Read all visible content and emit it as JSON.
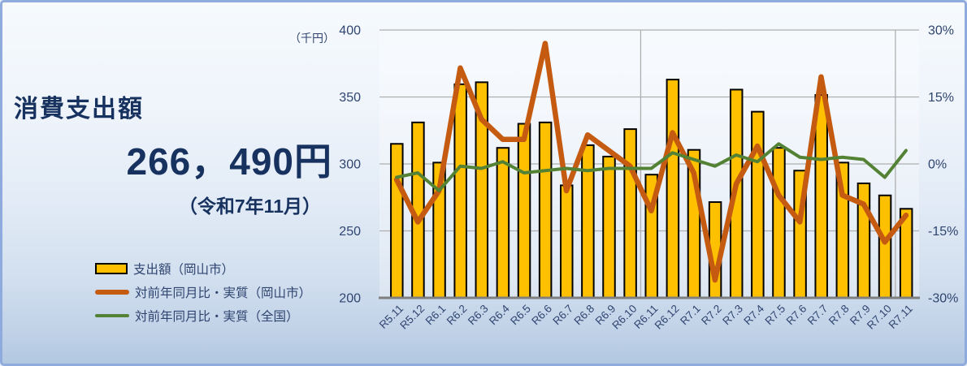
{
  "panel": {
    "border_color": "#8FAADC",
    "background_top": "#F6FAFD",
    "background_bottom": "#B2C8E1"
  },
  "headline": {
    "title": "消費支出額",
    "amount": "266，490円",
    "period": "（令和7年11月）",
    "text_color": "#17325F"
  },
  "legend": {
    "items": [
      {
        "label": "支出額（岡山市）",
        "type": "bar",
        "color": "#FFC000"
      },
      {
        "label": "対前年同月比・実質（岡山市）",
        "type": "line",
        "color": "#C55A11"
      },
      {
        "label": "対前年同月比・実質（全国）",
        "type": "line",
        "color": "#548235"
      }
    ]
  },
  "chart_data": {
    "type": "combo",
    "categories": [
      "R5.11",
      "R5.12",
      "R6.1",
      "R6.2",
      "R6.3",
      "R6.4",
      "R6.5",
      "R6.6",
      "R6.7",
      "R6.8",
      "R6.9",
      "R6.10",
      "R6.11",
      "R6.12",
      "R7.1",
      "R7.2",
      "R7.3",
      "R7.4",
      "R7.5",
      "R7.6",
      "R7.7",
      "R7.8",
      "R7.9",
      "R7.10",
      "R7.11"
    ],
    "series": [
      {
        "name": "支出額（岡山市）",
        "type": "bar",
        "axis": "left",
        "unit": "千円",
        "color": "#FFC000",
        "values": [
          315,
          331,
          301,
          359.5,
          361,
          312,
          330,
          331,
          284,
          314,
          305.5,
          326,
          292,
          363,
          310.5,
          271.5,
          355.5,
          339,
          312,
          295,
          351.5,
          301,
          285.5,
          276.5,
          266.49
        ]
      },
      {
        "name": "対前年同月比・実質（岡山市）",
        "type": "line",
        "axis": "right",
        "unit": "%",
        "color": "#C55A11",
        "values": [
          -3.5,
          -13,
          -6,
          21.5,
          10,
          5.5,
          5.5,
          27,
          -6,
          6.5,
          3,
          -0.5,
          -10.5,
          7,
          -2,
          -26,
          -4.5,
          4,
          -7,
          -13,
          19.5,
          -7,
          -9,
          -17.5,
          -11.5
        ]
      },
      {
        "name": "対前年同月比・実質（全国）",
        "type": "line",
        "axis": "right",
        "unit": "%",
        "color": "#548235",
        "values": [
          -3,
          -2,
          -6,
          -0.5,
          -1,
          0.5,
          -2,
          -1.5,
          -1,
          -1.5,
          -1,
          -1,
          -1,
          2.5,
          1,
          -0.5,
          2,
          0.5,
          4.5,
          1.5,
          1,
          1.5,
          1,
          -3,
          3
        ]
      }
    ],
    "left_axis": {
      "label": "（千円）",
      "min": 200,
      "max": 400,
      "ticks": [
        400,
        350,
        300,
        250,
        200
      ]
    },
    "right_axis": {
      "min": -30,
      "max": 30,
      "ticks": [
        "30%",
        "15%",
        "0%",
        "-15%",
        "-30%"
      ]
    },
    "grid": true,
    "x_major_gridlines_every": 12,
    "legend_position": "left-bottom",
    "title": "消費支出額 266，490円（令和7年11月）",
    "text_color": "#2F4570",
    "gridline_color": "#AFAFAF",
    "axisline_color": "#7F7F7F"
  }
}
